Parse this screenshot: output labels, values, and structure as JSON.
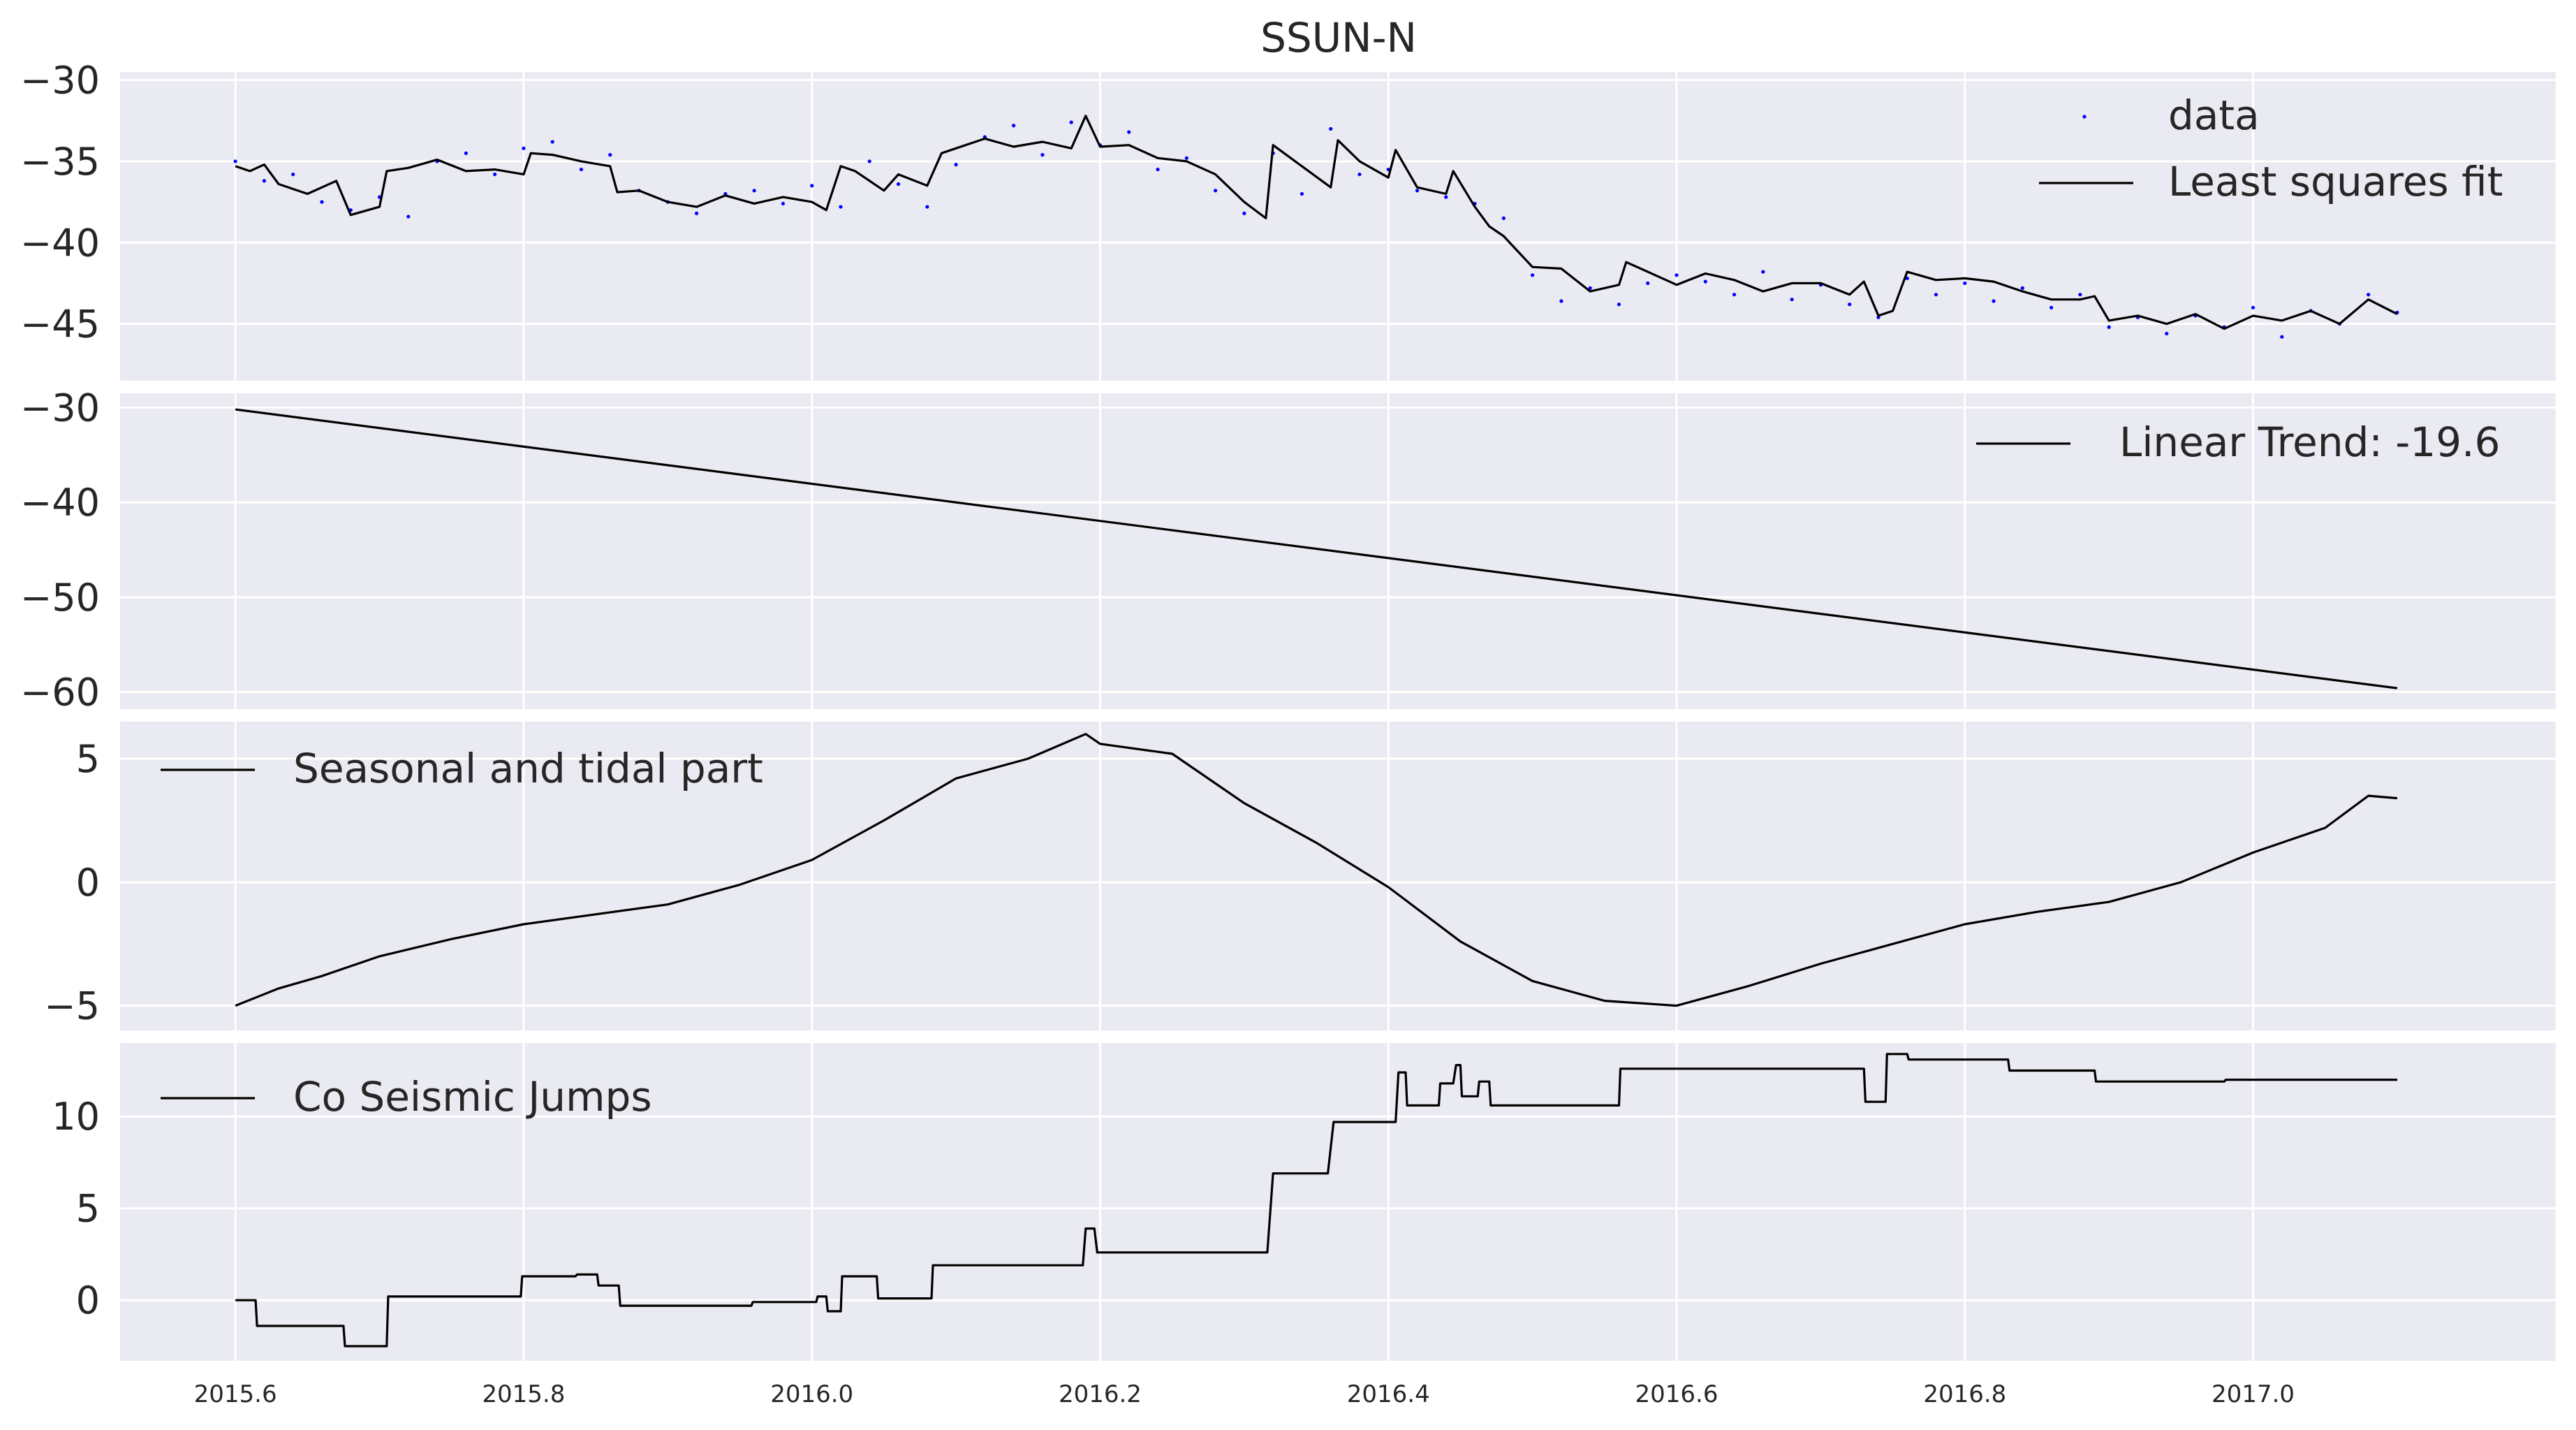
{
  "title": "SSUN-N",
  "chart_data": [
    {
      "type": "line",
      "panel": 1,
      "ylim": [
        -48.5,
        -29.5
      ],
      "yticks": [
        -30,
        -35,
        -40,
        -45
      ],
      "grid": true,
      "legend_position": "top-right",
      "series": [
        {
          "name": "data",
          "style": "points",
          "color": "#0000ff",
          "x": [
            2015.6,
            2015.62,
            2015.64,
            2015.66,
            2015.68,
            2015.7,
            2015.72,
            2015.74,
            2015.76,
            2015.78,
            2015.8,
            2015.82,
            2015.84,
            2015.86,
            2015.88,
            2015.9,
            2015.92,
            2015.94,
            2015.96,
            2015.98,
            2016.0,
            2016.02,
            2016.04,
            2016.06,
            2016.08,
            2016.1,
            2016.12,
            2016.14,
            2016.16,
            2016.18,
            2016.2,
            2016.22,
            2016.24,
            2016.26,
            2016.28,
            2016.3,
            2016.32,
            2016.34,
            2016.36,
            2016.38,
            2016.4,
            2016.42,
            2016.44,
            2016.46,
            2016.48,
            2016.5,
            2016.52,
            2016.54,
            2016.56,
            2016.58,
            2016.6,
            2016.62,
            2016.64,
            2016.66,
            2016.68,
            2016.7,
            2016.72,
            2016.74,
            2016.76,
            2016.78,
            2016.8,
            2016.82,
            2016.84,
            2016.86,
            2016.88,
            2016.9,
            2016.92,
            2016.94,
            2016.96,
            2016.98,
            2017.0,
            2017.02,
            2017.04,
            2017.06,
            2017.08,
            2017.1
          ],
          "values": [
            -35.0,
            -36.2,
            -35.8,
            -37.5,
            -38.0,
            -37.2,
            -38.4,
            -35.0,
            -34.5,
            -35.8,
            -34.2,
            -33.8,
            -35.5,
            -34.6,
            -36.8,
            -37.5,
            -38.2,
            -37.0,
            -36.8,
            -37.6,
            -36.5,
            -37.8,
            -35.0,
            -36.4,
            -37.8,
            -35.2,
            -33.5,
            -32.8,
            -34.6,
            -32.6,
            -34.0,
            -33.2,
            -35.5,
            -34.8,
            -36.8,
            -38.2,
            -34.5,
            -37.0,
            -33.0,
            -35.8,
            -35.5,
            -36.8,
            -37.2,
            -37.6,
            -38.5,
            -42.0,
            -43.6,
            -42.8,
            -43.8,
            -42.5,
            -42.0,
            -42.4,
            -43.2,
            -41.8,
            -43.5,
            -42.6,
            -43.8,
            -44.6,
            -42.2,
            -43.2,
            -42.5,
            -43.6,
            -42.8,
            -44.0,
            -43.2,
            -45.2,
            -44.6,
            -45.6,
            -44.5,
            -45.2,
            -44.0,
            -45.8,
            -44.2,
            -45.0,
            -43.2,
            -44.3
          ]
        },
        {
          "name": "Least squares fit",
          "style": "line",
          "color": "#000000",
          "x": [
            2015.6,
            2015.61,
            2015.62,
            2015.63,
            2015.65,
            2015.67,
            2015.68,
            2015.7,
            2015.705,
            2015.72,
            2015.74,
            2015.76,
            2015.78,
            2015.8,
            2015.805,
            2015.82,
            2015.84,
            2015.86,
            2015.865,
            2015.88,
            2015.9,
            2015.92,
            2015.94,
            2015.96,
            2015.98,
            2016.0,
            2016.01,
            2016.02,
            2016.03,
            2016.05,
            2016.06,
            2016.08,
            2016.09,
            2016.1,
            2016.12,
            2016.14,
            2016.16,
            2016.18,
            2016.19,
            2016.2,
            2016.22,
            2016.24,
            2016.26,
            2016.28,
            2016.3,
            2016.315,
            2016.32,
            2016.34,
            2016.36,
            2016.365,
            2016.38,
            2016.4,
            2016.405,
            2016.42,
            2016.44,
            2016.445,
            2016.46,
            2016.47,
            2016.48,
            2016.5,
            2016.52,
            2016.54,
            2016.56,
            2016.565,
            2016.58,
            2016.6,
            2016.62,
            2016.64,
            2016.66,
            2016.68,
            2016.7,
            2016.72,
            2016.73,
            2016.74,
            2016.75,
            2016.76,
            2016.78,
            2016.8,
            2016.82,
            2016.84,
            2016.86,
            2016.88,
            2016.89,
            2016.9,
            2016.92,
            2016.94,
            2016.96,
            2016.98,
            2017.0,
            2017.02,
            2017.04,
            2017.06,
            2017.08,
            2017.1
          ],
          "values": [
            -35.3,
            -35.6,
            -35.2,
            -36.4,
            -37.0,
            -36.2,
            -38.3,
            -37.8,
            -35.6,
            -35.4,
            -34.9,
            -35.6,
            -35.5,
            -35.8,
            -34.5,
            -34.6,
            -35.0,
            -35.3,
            -36.9,
            -36.8,
            -37.5,
            -37.8,
            -37.1,
            -37.6,
            -37.2,
            -37.5,
            -38.0,
            -35.3,
            -35.6,
            -36.8,
            -35.8,
            -36.5,
            -34.5,
            -34.2,
            -33.6,
            -34.1,
            -33.8,
            -34.2,
            -32.2,
            -34.1,
            -34.0,
            -34.8,
            -35.0,
            -35.8,
            -37.5,
            -38.5,
            -34.0,
            -35.3,
            -36.6,
            -33.7,
            -35.0,
            -36.0,
            -34.3,
            -36.6,
            -37.0,
            -35.6,
            -37.8,
            -39.0,
            -39.6,
            -41.5,
            -41.6,
            -43.0,
            -42.6,
            -41.2,
            -41.8,
            -42.6,
            -41.9,
            -42.3,
            -43.0,
            -42.5,
            -42.5,
            -43.2,
            -42.4,
            -44.5,
            -44.2,
            -41.8,
            -42.3,
            -42.2,
            -42.4,
            -43.0,
            -43.5,
            -43.5,
            -43.3,
            -44.8,
            -44.5,
            -45.0,
            -44.4,
            -45.3,
            -44.5,
            -44.8,
            -44.2,
            -45.0,
            -43.5,
            -44.4
          ]
        }
      ]
    },
    {
      "type": "line",
      "panel": 2,
      "ylim": [
        -61.8,
        -28.5
      ],
      "yticks": [
        -30,
        -40,
        -50,
        -60
      ],
      "grid": true,
      "legend_position": "top-right",
      "series": [
        {
          "name": "Linear Trend: -19.6",
          "color": "#000000",
          "x": [
            2015.6,
            2017.1
          ],
          "values": [
            -30.2,
            -59.6
          ]
        }
      ]
    },
    {
      "type": "line",
      "panel": 3,
      "ylim": [
        -6.0,
        6.5
      ],
      "yticks": [
        5,
        0,
        -5
      ],
      "grid": true,
      "legend_position": "top-left",
      "series": [
        {
          "name": "Seasonal and tidal part",
          "color": "#000000",
          "x": [
            2015.6,
            2015.63,
            2015.66,
            2015.7,
            2015.75,
            2015.8,
            2015.85,
            2015.9,
            2015.95,
            2016.0,
            2016.05,
            2016.1,
            2016.15,
            2016.19,
            2016.2,
            2016.25,
            2016.3,
            2016.35,
            2016.4,
            2016.45,
            2016.5,
            2016.55,
            2016.6,
            2016.65,
            2016.7,
            2016.75,
            2016.8,
            2016.85,
            2016.9,
            2016.95,
            2017.0,
            2017.05,
            2017.08,
            2017.1
          ],
          "values": [
            -5.0,
            -4.3,
            -3.8,
            -3.0,
            -2.3,
            -1.7,
            -1.3,
            -0.9,
            -0.1,
            0.9,
            2.5,
            4.2,
            5.0,
            6.0,
            5.6,
            5.2,
            3.2,
            1.6,
            -0.2,
            -2.4,
            -4.0,
            -4.8,
            -5.0,
            -4.2,
            -3.3,
            -2.5,
            -1.7,
            -1.2,
            -0.8,
            0.0,
            1.2,
            2.2,
            3.5,
            3.4
          ]
        }
      ]
    },
    {
      "type": "line",
      "panel": 4,
      "ylim": [
        -3.3,
        14.0
      ],
      "yticks": [
        10,
        5,
        0
      ],
      "grid": true,
      "legend_position": "top-left",
      "series": [
        {
          "name": "Co Seismic Jumps",
          "color": "#000000",
          "x": [
            2015.6,
            2015.614,
            2015.615,
            2015.675,
            2015.676,
            2015.705,
            2015.706,
            2015.798,
            2015.799,
            2015.836,
            2015.837,
            2015.851,
            2015.852,
            2015.866,
            2015.867,
            2015.958,
            2015.959,
            2016.003,
            2016.004,
            2016.01,
            2016.011,
            2016.02,
            2016.021,
            2016.045,
            2016.046,
            2016.083,
            2016.084,
            2016.188,
            2016.19,
            2016.196,
            2016.198,
            2016.316,
            2016.32,
            2016.358,
            2016.362,
            2016.405,
            2016.407,
            2016.412,
            2016.413,
            2016.435,
            2016.436,
            2016.445,
            2016.447,
            2016.45,
            2016.451,
            2016.462,
            2016.463,
            2016.47,
            2016.471,
            2016.56,
            2016.561,
            2016.73,
            2016.731,
            2016.745,
            2016.746,
            2016.76,
            2016.761,
            2016.83,
            2016.831,
            2016.89,
            2016.891,
            2016.98,
            2016.981,
            2017.1
          ],
          "values": [
            0.0,
            0.0,
            -1.4,
            -1.4,
            -2.5,
            -2.5,
            0.2,
            0.2,
            1.3,
            1.3,
            1.4,
            1.4,
            0.8,
            0.8,
            -0.3,
            -0.3,
            -0.1,
            -0.1,
            0.2,
            0.2,
            -0.6,
            -0.6,
            1.3,
            1.3,
            0.1,
            0.1,
            1.9,
            1.9,
            3.9,
            3.9,
            2.6,
            2.6,
            6.9,
            6.9,
            9.7,
            9.7,
            12.4,
            12.4,
            10.6,
            10.6,
            11.8,
            11.8,
            12.8,
            12.8,
            11.1,
            11.1,
            11.9,
            11.9,
            10.6,
            10.6,
            12.6,
            12.6,
            10.8,
            10.8,
            13.4,
            13.4,
            13.1,
            13.1,
            12.5,
            12.5,
            11.9,
            11.9,
            12.0,
            12.0
          ]
        }
      ]
    }
  ],
  "x_axis": {
    "xlim": [
      2015.52,
      2017.21
    ],
    "ticks": [
      "2015.6",
      "2015.8",
      "2016.0",
      "2016.2",
      "2016.4",
      "2016.6",
      "2016.8",
      "2017.0"
    ],
    "tick_values": [
      2015.6,
      2015.8,
      2016.0,
      2016.2,
      2016.4,
      2016.6,
      2016.8,
      2017.0
    ]
  },
  "colors": {
    "panel_bg": "#eaeaf2",
    "grid": "#ffffff",
    "text": "#262626",
    "data_points": "#0000ff",
    "lines": "#000000"
  }
}
